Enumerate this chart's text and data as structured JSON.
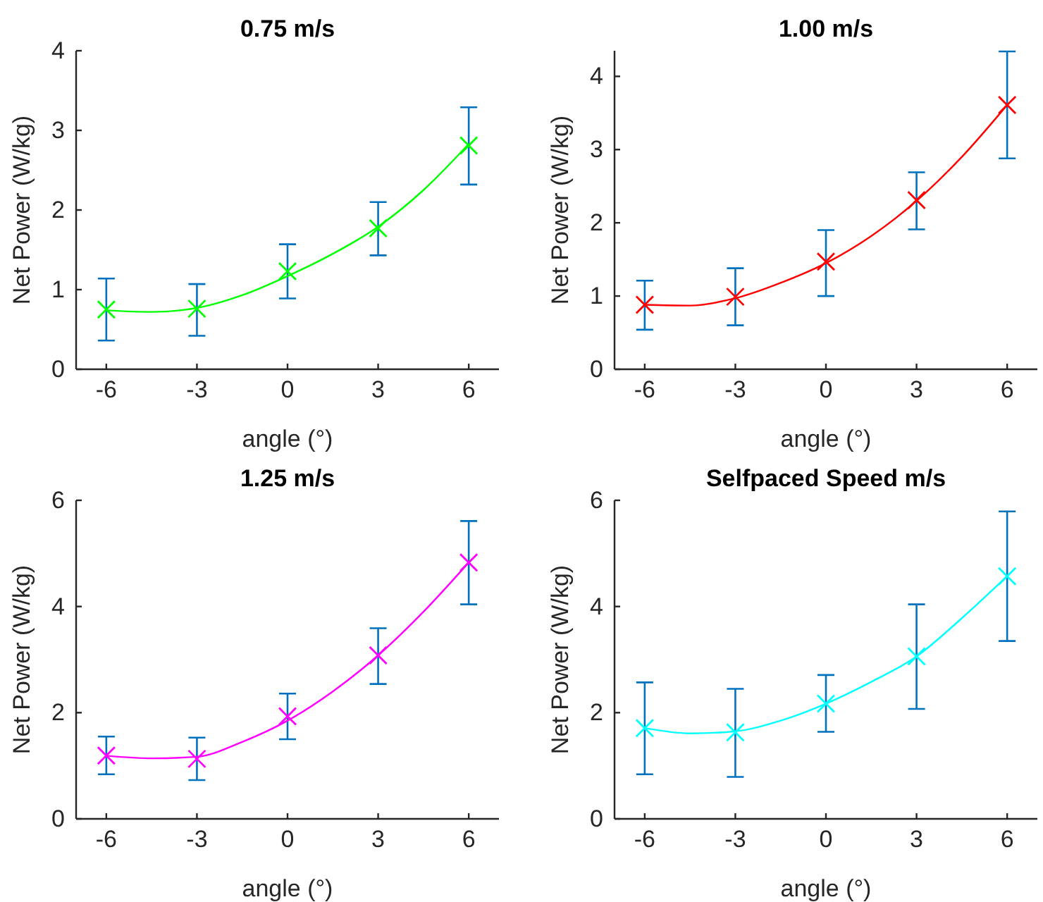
{
  "chart_data": [
    {
      "type": "scatter",
      "title": "0.75 m/s",
      "xlabel": "angle (°)",
      "ylabel": "Net Power (W/kg)",
      "xlim": [
        -7,
        7
      ],
      "xticks": [
        -6,
        -3,
        0,
        3,
        6
      ],
      "ylim": [
        0,
        4
      ],
      "yticks": [
        0,
        1,
        2,
        3,
        4
      ],
      "series": [
        {
          "type": "scatter",
          "marker": "cross",
          "color": "#00ff00",
          "x": [
            -6,
            -3,
            0,
            3,
            6
          ],
          "values": [
            0.75,
            0.76,
            1.23,
            1.77,
            2.81
          ],
          "errors": [
            [
              0.36,
              1.14
            ],
            [
              0.42,
              1.07
            ],
            [
              0.89,
              1.57
            ],
            [
              1.43,
              2.1
            ],
            [
              2.32,
              3.29
            ]
          ]
        },
        {
          "type": "line",
          "marker": "none",
          "color": "#00ff00",
          "x": [
            -6,
            -4.5,
            -3,
            -1.5,
            0,
            1.5,
            3,
            4.5,
            6
          ],
          "values": [
            0.74,
            0.72,
            0.77,
            0.93,
            1.17,
            1.45,
            1.79,
            2.25,
            2.83
          ]
        }
      ]
    },
    {
      "type": "scatter",
      "title": "1.00 m/s",
      "xlabel": "angle (°)",
      "ylabel": "Net Power (W/kg)",
      "xlim": [
        -7,
        7
      ],
      "xticks": [
        -6,
        -3,
        0,
        3,
        6
      ],
      "ylim": [
        0,
        4.35
      ],
      "yticks": [
        0,
        1,
        2,
        3,
        4
      ],
      "series": [
        {
          "type": "scatter",
          "marker": "cross",
          "color": "#ff0000",
          "x": [
            -6,
            -3,
            0,
            3,
            6
          ],
          "values": [
            0.88,
            0.99,
            1.47,
            2.31,
            3.61
          ],
          "errors": [
            [
              0.54,
              1.21
            ],
            [
              0.6,
              1.38
            ],
            [
              1.0,
              1.9
            ],
            [
              1.91,
              2.69
            ],
            [
              2.88,
              4.34
            ]
          ]
        },
        {
          "type": "line",
          "marker": "none",
          "color": "#ff0000",
          "x": [
            -6,
            -4.5,
            -3,
            -1.5,
            0,
            1.5,
            3,
            4.5,
            6
          ],
          "values": [
            0.88,
            0.87,
            0.97,
            1.18,
            1.45,
            1.82,
            2.3,
            2.9,
            3.61
          ]
        }
      ]
    },
    {
      "type": "scatter",
      "title": "1.25 m/s",
      "xlabel": "angle (°)",
      "ylabel": "Net Power (W/kg)",
      "xlim": [
        -7,
        7
      ],
      "xticks": [
        -6,
        -3,
        0,
        3,
        6
      ],
      "ylim": [
        0,
        6
      ],
      "yticks": [
        0,
        2,
        4,
        6
      ],
      "series": [
        {
          "type": "scatter",
          "marker": "cross",
          "color": "#ff00ff",
          "x": [
            -6,
            -3,
            0,
            3,
            6
          ],
          "values": [
            1.19,
            1.13,
            1.93,
            3.08,
            4.83
          ],
          "errors": [
            [
              0.84,
              1.55
            ],
            [
              0.73,
              1.53
            ],
            [
              1.5,
              2.36
            ],
            [
              2.54,
              3.59
            ],
            [
              4.04,
              5.61
            ]
          ]
        },
        {
          "type": "line",
          "marker": "none",
          "color": "#ff00ff",
          "x": [
            -6,
            -4.5,
            -3,
            -1.5,
            0,
            1.5,
            3,
            4.5,
            6
          ],
          "values": [
            1.19,
            1.14,
            1.17,
            1.45,
            1.85,
            2.4,
            3.08,
            3.9,
            4.83
          ]
        }
      ]
    },
    {
      "type": "scatter",
      "title": "Selfpaced Speed m/s",
      "xlabel": "angle (°)",
      "ylabel": "Net Power (W/kg)",
      "xlim": [
        -7,
        7
      ],
      "xticks": [
        -6,
        -3,
        0,
        3,
        6
      ],
      "ylim": [
        0,
        6
      ],
      "yticks": [
        0,
        2,
        4,
        6
      ],
      "series": [
        {
          "type": "scatter",
          "marker": "cross",
          "color": "#00ffff",
          "x": [
            -6,
            -3,
            0,
            3,
            6
          ],
          "values": [
            1.71,
            1.63,
            2.17,
            3.06,
            4.57
          ],
          "errors": [
            [
              0.84,
              2.57
            ],
            [
              0.79,
              2.45
            ],
            [
              1.64,
              2.71
            ],
            [
              2.07,
              4.04
            ],
            [
              3.35,
              5.79
            ]
          ]
        },
        {
          "type": "line",
          "marker": "none",
          "color": "#00ffff",
          "x": [
            -6,
            -4.5,
            -3,
            -1.5,
            0,
            1.5,
            3,
            4.5,
            6
          ],
          "values": [
            1.71,
            1.61,
            1.65,
            1.85,
            2.17,
            2.58,
            3.06,
            3.78,
            4.57
          ]
        }
      ]
    }
  ]
}
